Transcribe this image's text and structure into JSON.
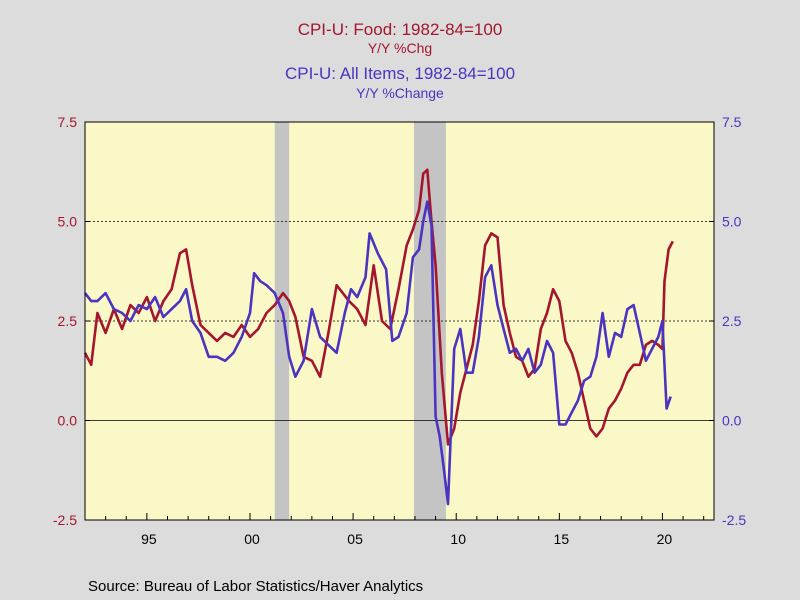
{
  "titles": {
    "food_title": "CPI-U: Food: 1982-84=100",
    "food_subtitle": "Y/Y %Chg",
    "all_title": "CPI-U: All Items, 1982-84=100",
    "all_subtitle": "Y/Y %Change"
  },
  "source": "Source:  Bureau of Labor Statistics/Haver Analytics",
  "colors": {
    "food": "#a3162d",
    "all_items": "#4b34c0",
    "plot_bg": "#fbf8c8",
    "recession": "#c4c4c4"
  },
  "chart_data": {
    "type": "line",
    "xlim": [
      1992.0,
      2022.5
    ],
    "ylim": [
      -2.5,
      7.5
    ],
    "yticks": [
      "7.5",
      "5.0",
      "2.5",
      "0.0",
      "-2.5"
    ],
    "ytick_values": [
      7.5,
      5.0,
      2.5,
      0.0,
      -2.5
    ],
    "xticks": [
      "95",
      "00",
      "05",
      "10",
      "15",
      "20"
    ],
    "xtick_values": [
      1995,
      2000,
      2005,
      2010,
      2015,
      2020
    ],
    "reference_lines": [
      5.0,
      2.5,
      0.0
    ],
    "recessions": [
      [
        2001.2,
        2001.9
      ],
      [
        2007.95,
        2009.5
      ]
    ],
    "series": [
      {
        "key": "food",
        "x": [
          1992.0,
          1992.3,
          1992.6,
          1993.0,
          1993.4,
          1993.8,
          1994.2,
          1994.6,
          1995.0,
          1995.4,
          1995.8,
          1996.2,
          1996.6,
          1996.9,
          1997.2,
          1997.6,
          1998.0,
          1998.4,
          1998.8,
          1999.2,
          1999.6,
          2000.0,
          2000.4,
          2000.8,
          2001.2,
          2001.6,
          2001.9,
          2002.2,
          2002.6,
          2003.0,
          2003.4,
          2003.8,
          2004.2,
          2004.5,
          2004.8,
          2005.2,
          2005.6,
          2006.0,
          2006.4,
          2006.8,
          2007.2,
          2007.6,
          2007.9,
          2008.2,
          2008.4,
          2008.6,
          2008.8,
          2009.0,
          2009.3,
          2009.6,
          2009.9,
          2010.2,
          2010.5,
          2010.8,
          2011.1,
          2011.4,
          2011.7,
          2012.0,
          2012.3,
          2012.6,
          2012.9,
          2013.2,
          2013.5,
          2013.8,
          2014.1,
          2014.4,
          2014.7,
          2015.0,
          2015.3,
          2015.6,
          2015.9,
          2016.2,
          2016.5,
          2016.8,
          2017.1,
          2017.4,
          2017.7,
          2018.0,
          2018.3,
          2018.6,
          2018.9,
          2019.2,
          2019.5,
          2019.8,
          2020.0,
          2020.1,
          2020.3,
          2020.5
        ],
        "values": [
          1.7,
          1.4,
          2.7,
          2.2,
          2.8,
          2.3,
          2.9,
          2.7,
          3.1,
          2.5,
          3.0,
          3.3,
          4.2,
          4.3,
          3.4,
          2.4,
          2.2,
          2.0,
          2.2,
          2.1,
          2.4,
          2.1,
          2.3,
          2.7,
          2.9,
          3.2,
          3.0,
          2.6,
          1.6,
          1.5,
          1.1,
          2.2,
          3.4,
          3.2,
          3.0,
          2.8,
          2.4,
          3.9,
          2.5,
          2.3,
          3.3,
          4.4,
          4.8,
          5.3,
          6.2,
          6.3,
          5.0,
          3.9,
          1.2,
          -0.6,
          -0.2,
          0.7,
          1.3,
          1.9,
          3.0,
          4.4,
          4.7,
          4.6,
          2.9,
          2.2,
          1.6,
          1.5,
          1.1,
          1.3,
          2.3,
          2.7,
          3.3,
          3.0,
          2.0,
          1.7,
          1.2,
          0.5,
          -0.2,
          -0.4,
          -0.2,
          0.3,
          0.5,
          0.8,
          1.2,
          1.4,
          1.4,
          1.9,
          2.0,
          1.9,
          1.8,
          3.5,
          4.3,
          4.5
        ]
      },
      {
        "key": "all_items",
        "x": [
          1992.0,
          1992.3,
          1992.6,
          1993.0,
          1993.4,
          1993.8,
          1994.2,
          1994.6,
          1995.0,
          1995.4,
          1995.8,
          1996.2,
          1996.6,
          1996.9,
          1997.2,
          1997.6,
          1998.0,
          1998.4,
          1998.8,
          1999.2,
          1999.6,
          2000.0,
          2000.2,
          2000.5,
          2000.8,
          2001.2,
          2001.6,
          2001.9,
          2002.2,
          2002.6,
          2003.0,
          2003.4,
          2003.8,
          2004.2,
          2004.6,
          2004.9,
          2005.2,
          2005.6,
          2005.8,
          2006.2,
          2006.6,
          2006.9,
          2007.2,
          2007.6,
          2007.9,
          2008.2,
          2008.4,
          2008.6,
          2008.8,
          2009.0,
          2009.2,
          2009.4,
          2009.6,
          2009.9,
          2010.2,
          2010.5,
          2010.8,
          2011.1,
          2011.4,
          2011.7,
          2012.0,
          2012.3,
          2012.6,
          2012.9,
          2013.2,
          2013.5,
          2013.8,
          2014.1,
          2014.4,
          2014.7,
          2015.0,
          2015.3,
          2015.6,
          2015.9,
          2016.2,
          2016.5,
          2016.8,
          2017.1,
          2017.4,
          2017.7,
          2018.0,
          2018.3,
          2018.6,
          2018.9,
          2019.2,
          2019.5,
          2019.8,
          2020.0,
          2020.2,
          2020.4
        ],
        "values": [
          3.2,
          3.0,
          3.0,
          3.2,
          2.8,
          2.7,
          2.5,
          2.9,
          2.8,
          3.1,
          2.6,
          2.8,
          3.0,
          3.3,
          2.5,
          2.2,
          1.6,
          1.6,
          1.5,
          1.7,
          2.1,
          2.7,
          3.7,
          3.5,
          3.4,
          3.2,
          2.7,
          1.6,
          1.1,
          1.5,
          2.8,
          2.1,
          1.9,
          1.7,
          2.7,
          3.3,
          3.1,
          3.6,
          4.7,
          4.2,
          3.8,
          2.0,
          2.1,
          2.7,
          4.1,
          4.3,
          5.0,
          5.5,
          4.9,
          0.1,
          -0.4,
          -1.2,
          -2.1,
          1.8,
          2.3,
          1.2,
          1.2,
          2.1,
          3.6,
          3.9,
          2.9,
          2.3,
          1.7,
          1.8,
          1.5,
          1.8,
          1.2,
          1.4,
          2.0,
          1.7,
          -0.1,
          -0.1,
          0.2,
          0.5,
          1.0,
          1.1,
          1.6,
          2.7,
          1.6,
          2.2,
          2.1,
          2.8,
          2.9,
          2.2,
          1.5,
          1.8,
          2.1,
          2.5,
          0.3,
          0.6
        ]
      }
    ]
  }
}
